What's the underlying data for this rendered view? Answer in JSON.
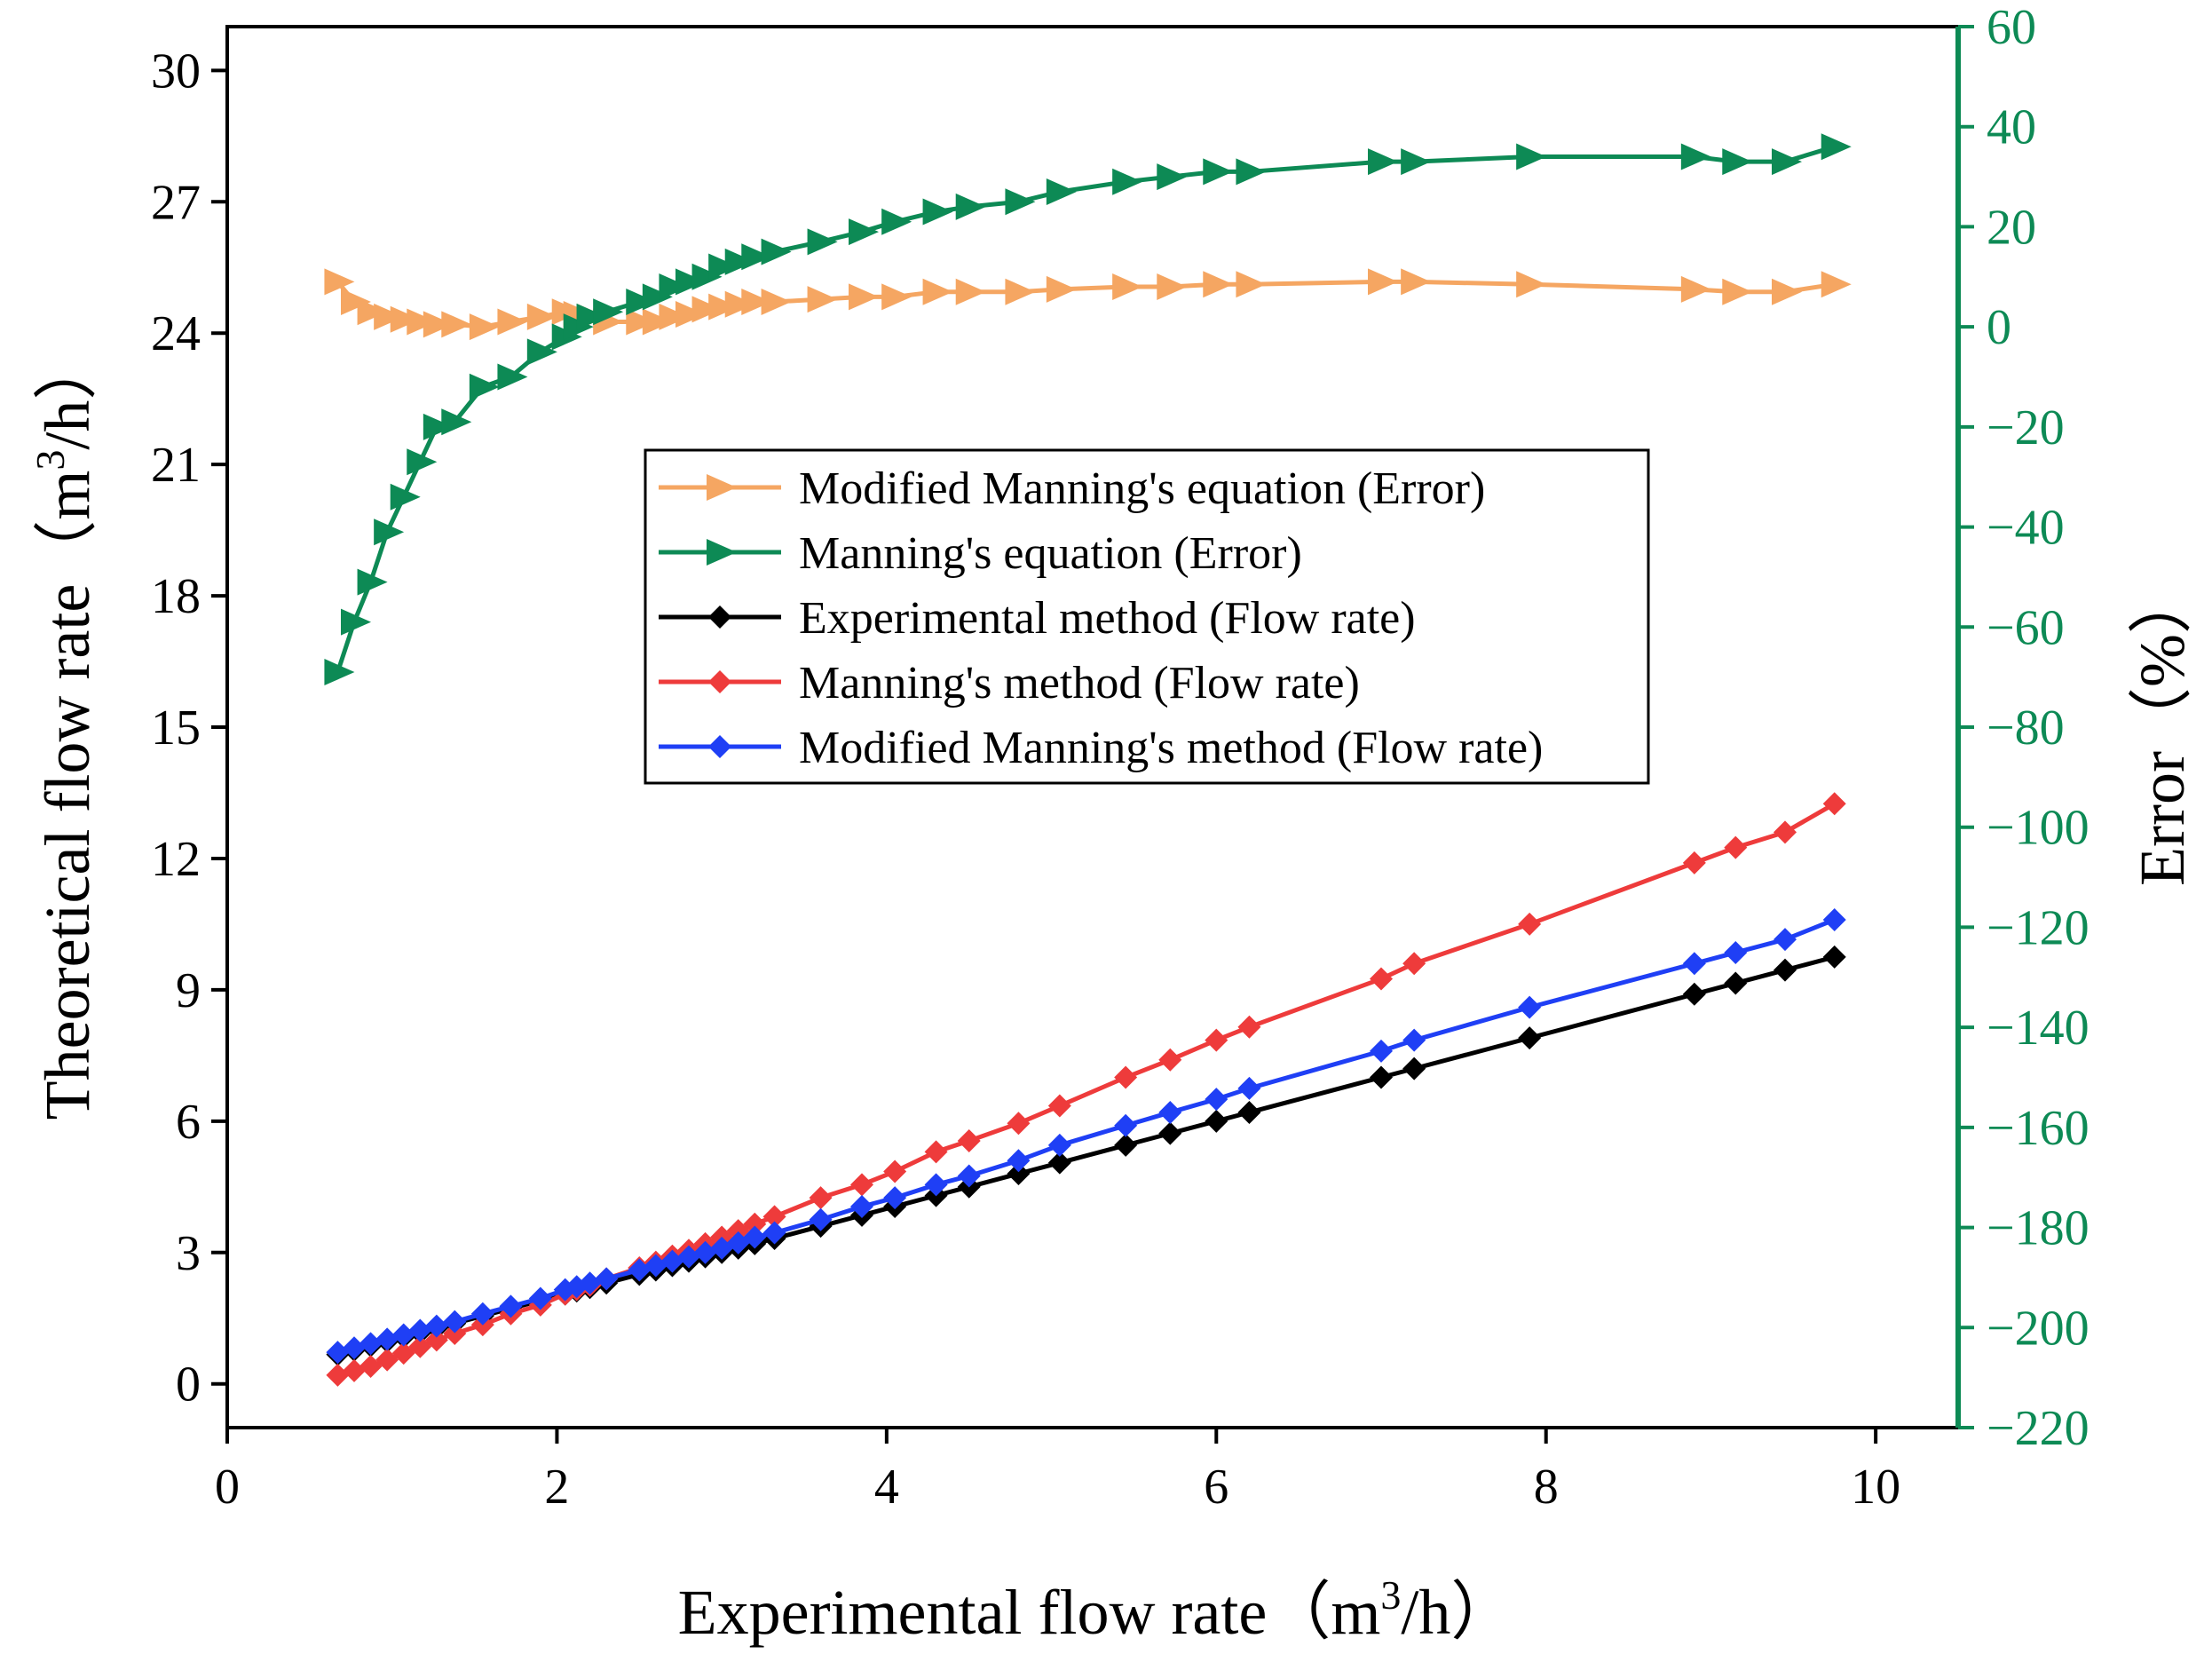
{
  "chart_data": {
    "type": "line",
    "xlabel": "Experimental flow rate（m³/h）",
    "xlabel_parts": {
      "pre": "Experimental flow rate（m",
      "sup": "3",
      "post": "/h）"
    },
    "ylabel_left": "Theoretical flow rate（m³/h）",
    "ylabel_left_parts": {
      "pre": "Theoretical flow rate（m",
      "sup": "3",
      "post": "/h）"
    },
    "ylabel_right": "Error（%）",
    "xlim": [
      0,
      10.5
    ],
    "ylim_left": [
      -1,
      31
    ],
    "ylim_right": [
      -220,
      60
    ],
    "x_ticks": [
      0,
      2,
      4,
      6,
      8,
      10
    ],
    "x_tick_labels": [
      "0",
      "2",
      "4",
      "6",
      "8",
      "10"
    ],
    "y_left_ticks": [
      0,
      3,
      6,
      9,
      12,
      15,
      18,
      21,
      24,
      27,
      30
    ],
    "y_left_tick_labels": [
      "0",
      "3",
      "6",
      "9",
      "12",
      "15",
      "18",
      "21",
      "24",
      "27",
      "30"
    ],
    "y_right_ticks": [
      -220,
      -200,
      -180,
      -160,
      -140,
      -120,
      -100,
      -80,
      -60,
      -40,
      -20,
      0,
      20,
      40,
      60
    ],
    "y_right_tick_labels": [
      "−220",
      "−200",
      "−180",
      "−160",
      "−140",
      "−120",
      "−100",
      "−80",
      "−60",
      "−40",
      "−20",
      "0",
      "20",
      "40",
      "60"
    ],
    "grid": false,
    "legend_position": "center",
    "series": [
      {
        "name": "Modified Manning's equation (Error)",
        "axis": "right",
        "color": "#f5a662",
        "marker": "triangle-right",
        "x": [
          0.67,
          0.77,
          0.87,
          0.97,
          1.07,
          1.17,
          1.27,
          1.38,
          1.55,
          1.72,
          1.9,
          2.05,
          2.12,
          2.2,
          2.3,
          2.5,
          2.6,
          2.7,
          2.8,
          2.9,
          3.0,
          3.1,
          3.2,
          3.32,
          3.6,
          3.85,
          4.05,
          4.3,
          4.5,
          4.8,
          5.05,
          5.45,
          5.72,
          6.0,
          6.2,
          7.0,
          7.2,
          7.9,
          8.9,
          9.15,
          9.45,
          9.75
        ],
        "y": [
          9,
          5,
          3,
          2,
          1.5,
          1,
          0.5,
          0.5,
          0,
          1,
          2,
          3,
          2.5,
          2,
          1,
          1,
          1,
          2,
          2.5,
          3.5,
          4,
          4.5,
          5,
          5,
          5.5,
          6,
          6,
          7,
          7,
          7,
          7.5,
          8,
          8,
          8.5,
          8.5,
          9,
          9,
          8.5,
          7.5,
          7,
          7,
          8.5
        ]
      },
      {
        "name": "Manning's equation (Error)",
        "axis": "right",
        "color": "#0d8a55",
        "marker": "triangle-right",
        "x": [
          0.67,
          0.77,
          0.87,
          0.97,
          1.07,
          1.17,
          1.27,
          1.38,
          1.55,
          1.72,
          1.9,
          2.05,
          2.12,
          2.2,
          2.3,
          2.5,
          2.6,
          2.7,
          2.8,
          2.9,
          3.0,
          3.1,
          3.2,
          3.32,
          3.6,
          3.85,
          4.05,
          4.3,
          4.5,
          4.8,
          5.05,
          5.45,
          5.72,
          6.0,
          6.2,
          7.0,
          7.2,
          7.9,
          8.9,
          9.15,
          9.45,
          9.75
        ],
        "y": [
          -69,
          -59,
          -51,
          -41,
          -34,
          -27,
          -20,
          -19,
          -12,
          -10,
          -5,
          -2,
          0,
          2,
          3,
          5,
          6,
          8,
          9,
          10,
          12,
          13,
          14,
          15,
          17,
          19,
          21,
          23,
          24,
          25,
          27,
          29,
          30,
          31,
          31,
          33,
          33,
          34,
          34,
          33,
          33,
          36
        ]
      },
      {
        "name": "Experimental method (Flow rate)",
        "axis": "left",
        "color": "#000000",
        "marker": "diamond",
        "x": [
          0.67,
          0.77,
          0.87,
          0.97,
          1.07,
          1.17,
          1.27,
          1.38,
          1.55,
          1.72,
          1.9,
          2.05,
          2.12,
          2.2,
          2.3,
          2.5,
          2.6,
          2.7,
          2.8,
          2.9,
          3.0,
          3.1,
          3.2,
          3.32,
          3.6,
          3.85,
          4.05,
          4.3,
          4.5,
          4.8,
          5.05,
          5.45,
          5.72,
          6.0,
          6.2,
          7.0,
          7.2,
          7.9,
          8.9,
          9.15,
          9.45,
          9.75
        ],
        "y": [
          0.67,
          0.77,
          0.87,
          0.97,
          1.07,
          1.17,
          1.27,
          1.38,
          1.55,
          1.72,
          1.9,
          2.05,
          2.12,
          2.2,
          2.3,
          2.5,
          2.6,
          2.7,
          2.8,
          2.9,
          3.0,
          3.1,
          3.2,
          3.32,
          3.6,
          3.85,
          4.05,
          4.3,
          4.5,
          4.8,
          5.05,
          5.45,
          5.72,
          6.0,
          6.2,
          7.0,
          7.2,
          7.9,
          8.9,
          9.15,
          9.45,
          9.75
        ]
      },
      {
        "name": "Manning's method (Flow rate)",
        "axis": "left",
        "color": "#ee3b3b",
        "marker": "diamond",
        "x": [
          0.67,
          0.77,
          0.87,
          0.97,
          1.07,
          1.17,
          1.27,
          1.38,
          1.55,
          1.72,
          1.9,
          2.05,
          2.12,
          2.2,
          2.3,
          2.5,
          2.6,
          2.7,
          2.8,
          2.9,
          3.0,
          3.1,
          3.2,
          3.32,
          3.6,
          3.85,
          4.05,
          4.3,
          4.5,
          4.8,
          5.05,
          5.45,
          5.72,
          6.0,
          6.2,
          7.0,
          7.2,
          7.9,
          8.9,
          9.15,
          9.45,
          9.75
        ],
        "y": [
          0.2,
          0.3,
          0.4,
          0.55,
          0.7,
          0.85,
          1.0,
          1.15,
          1.35,
          1.6,
          1.8,
          2.05,
          2.15,
          2.25,
          2.4,
          2.65,
          2.78,
          2.92,
          3.05,
          3.2,
          3.35,
          3.5,
          3.65,
          3.82,
          4.25,
          4.55,
          4.85,
          5.3,
          5.55,
          5.95,
          6.35,
          7.0,
          7.4,
          7.85,
          8.15,
          9.25,
          9.6,
          10.5,
          11.9,
          12.25,
          12.6,
          13.25
        ]
      },
      {
        "name": "Modified Manning's method (Flow rate)",
        "axis": "left",
        "color": "#1f3ff5",
        "marker": "diamond",
        "x": [
          0.67,
          0.77,
          0.87,
          0.97,
          1.07,
          1.17,
          1.27,
          1.38,
          1.55,
          1.72,
          1.9,
          2.05,
          2.12,
          2.2,
          2.3,
          2.5,
          2.6,
          2.7,
          2.8,
          2.9,
          3.0,
          3.1,
          3.2,
          3.32,
          3.6,
          3.85,
          4.05,
          4.3,
          4.5,
          4.8,
          5.05,
          5.45,
          5.72,
          6.0,
          6.2,
          7.0,
          7.2,
          7.9,
          8.9,
          9.15,
          9.45,
          9.75
        ],
        "y": [
          0.72,
          0.82,
          0.92,
          1.02,
          1.12,
          1.22,
          1.32,
          1.42,
          1.6,
          1.77,
          1.95,
          2.15,
          2.22,
          2.3,
          2.4,
          2.6,
          2.7,
          2.8,
          2.9,
          3.0,
          3.1,
          3.22,
          3.35,
          3.45,
          3.75,
          4.05,
          4.25,
          4.55,
          4.75,
          5.1,
          5.45,
          5.9,
          6.2,
          6.5,
          6.75,
          7.6,
          7.85,
          8.6,
          9.6,
          9.85,
          10.15,
          10.6
        ]
      }
    ],
    "legend_entries": [
      "Modified Manning's equation (Error)",
      "Manning's equation (Error)",
      "Experimental method (Flow rate)",
      "Manning's method (Flow rate)",
      "Modified Manning's method (Flow rate)"
    ]
  }
}
